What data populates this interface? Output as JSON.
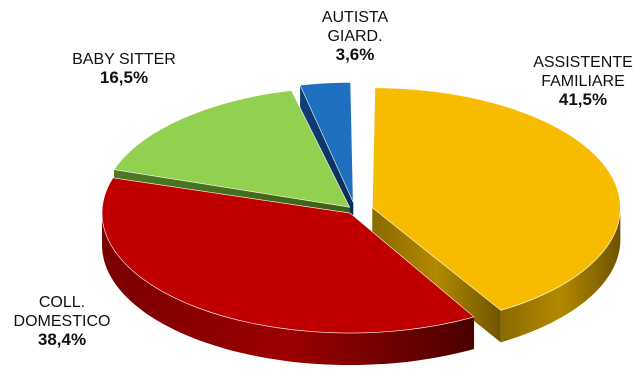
{
  "chart_data": {
    "type": "pie",
    "title": "",
    "slices": [
      {
        "label_lines": [
          "ASSISTENTE",
          "FAMILIARE"
        ],
        "value_label": "41,5%",
        "value": 41.5,
        "color": "#F7BC00"
      },
      {
        "label_lines": [
          "COLL.",
          "DOMESTICO"
        ],
        "value_label": "38,4%",
        "value": 38.4,
        "color": "#C00000"
      },
      {
        "label_lines": [
          "BABY SITTER"
        ],
        "value_label": "16,5%",
        "value": 16.5,
        "color": "#92D050"
      },
      {
        "label_lines": [
          "AUTISTA",
          "GIARD."
        ],
        "value_label": "3,6%",
        "value": 3.6,
        "color": "#1F6FC0"
      }
    ],
    "legend": "none",
    "style": "3d-exploded"
  }
}
